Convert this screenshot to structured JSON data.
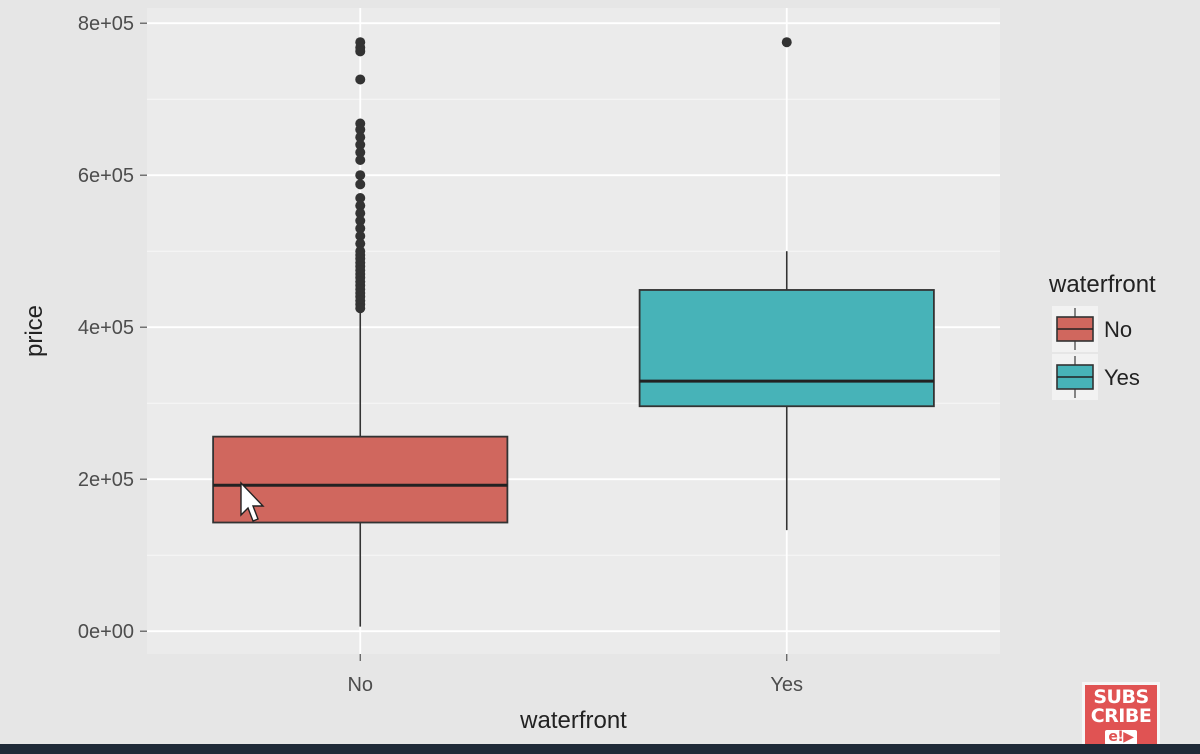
{
  "chart_data": {
    "type": "boxplot",
    "xlabel": "waterfront",
    "ylabel": "price",
    "ylim": [
      -30000,
      820000
    ],
    "y_ticks": [
      0,
      200000,
      400000,
      600000,
      800000
    ],
    "y_tick_labels": [
      "0e+00",
      "2e+05",
      "4e+05",
      "6e+05",
      "8e+05"
    ],
    "categories": [
      "No",
      "Yes"
    ],
    "legend": {
      "title": "waterfront",
      "placement": "right",
      "entries": [
        "No",
        "Yes"
      ]
    },
    "series": [
      {
        "name": "No",
        "color": "#d0675e",
        "q1": 143000,
        "median": 192000,
        "q3": 256000,
        "whisker_low": 6000,
        "whisker_high": 420000,
        "outliers": [
          775000,
          768000,
          763000,
          726000,
          668000,
          660000,
          650000,
          640000,
          630000,
          620000,
          600000,
          588000,
          570000,
          560000,
          550000,
          540000,
          530000,
          520000,
          510000,
          500000,
          495000,
          490000,
          485000,
          480000,
          475000,
          470000,
          465000,
          460000,
          455000,
          450000,
          445000,
          440000,
          435000,
          430000,
          425000
        ]
      },
      {
        "name": "Yes",
        "color": "#47b3b8",
        "q1": 296000,
        "median": 329000,
        "q3": 449000,
        "whisker_low": 133000,
        "whisker_high": 500000,
        "outliers": [
          775000
        ]
      }
    ],
    "grid": true,
    "colors": {
      "panel_bg": "#ebebeb",
      "grid": "#ffffff",
      "box_stroke": "#333333",
      "point": "#333333",
      "text": "#4d4d4d"
    }
  },
  "badge": {
    "line1": "SUBS",
    "line2": "CRIBE",
    "line3": "e!▶"
  }
}
